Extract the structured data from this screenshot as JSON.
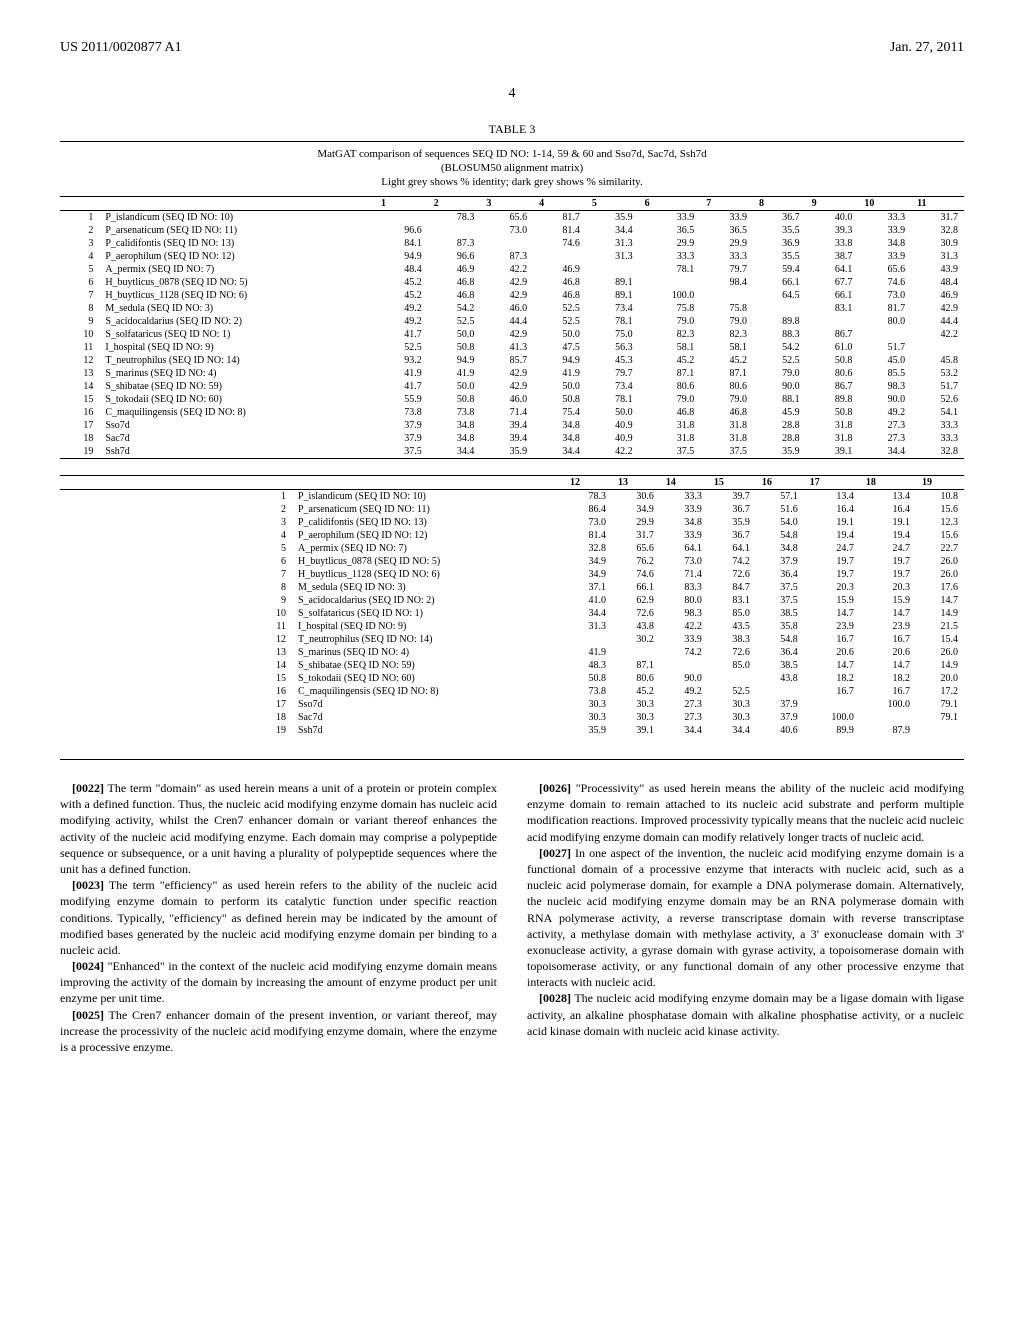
{
  "header": {
    "left": "US 2011/0020877 A1",
    "right": "Jan. 27, 2011"
  },
  "page_number": "4",
  "table": {
    "label": "TABLE 3",
    "caption1": "MatGAT comparison of sequences SEQ ID NO: 1-14, 59 & 60 and Sso7d, Sac7d, Ssh7d",
    "caption2": "(BLOSUM50 alignment matrix)",
    "caption3": "Light grey shows % identity; dark grey shows % similarity.",
    "rows1_headers": [
      "1",
      "2",
      "3",
      "4",
      "5",
      "6",
      "7",
      "8",
      "9",
      "10",
      "11"
    ],
    "rows2_headers": [
      "12",
      "13",
      "14",
      "15",
      "16",
      "17",
      "18",
      "19"
    ],
    "species": [
      {
        "n": "1",
        "name": "P_islandicum (SEQ ID NO: 10)"
      },
      {
        "n": "2",
        "name": "P_arsenaticum (SEQ ID NO: 11)"
      },
      {
        "n": "3",
        "name": "P_calidifontis (SEQ ID NO: 13)"
      },
      {
        "n": "4",
        "name": "P_aerophilum (SEQ ID NO: 12)"
      },
      {
        "n": "5",
        "name": "A_permix (SEQ ID NO: 7)"
      },
      {
        "n": "6",
        "name": "H_buytlicus_0878 (SEQ ID NO: 5)"
      },
      {
        "n": "7",
        "name": "H_buytlicus_1128 (SEQ ID NO: 6)"
      },
      {
        "n": "8",
        "name": "M_sedula (SEQ ID NO: 3)"
      },
      {
        "n": "9",
        "name": "S_acidocaldarius (SEQ ID NO: 2)"
      },
      {
        "n": "10",
        "name": "S_solfataricus (SEQ ID NO: 1)"
      },
      {
        "n": "11",
        "name": "I_hospital (SEQ ID NO: 9)"
      },
      {
        "n": "12",
        "name": "T_neutrophilus (SEQ ID NO: 14)"
      },
      {
        "n": "13",
        "name": "S_marinus (SEQ ID NO: 4)"
      },
      {
        "n": "14",
        "name": "S_shibatae (SEQ ID NO: 59)"
      },
      {
        "n": "15",
        "name": "S_tokodaii (SEQ ID NO: 60)"
      },
      {
        "n": "16",
        "name": "C_maquilingensis (SEQ ID NO: 8)"
      },
      {
        "n": "17",
        "name": "Sso7d"
      },
      {
        "n": "18",
        "name": "Sac7d"
      },
      {
        "n": "19",
        "name": "Ssh7d"
      }
    ],
    "matrix1": [
      [
        "",
        "78.3",
        "65.6",
        "81.7",
        "35.9",
        "33.9",
        "33.9",
        "36.7",
        "40.0",
        "33.3",
        "31.7"
      ],
      [
        "96.6",
        "",
        "73.0",
        "81.4",
        "34.4",
        "36.5",
        "36.5",
        "35.5",
        "39.3",
        "33.9",
        "32.8"
      ],
      [
        "84.1",
        "87.3",
        "",
        "74.6",
        "31.3",
        "29.9",
        "29.9",
        "36.9",
        "33.8",
        "34.8",
        "30.9"
      ],
      [
        "94.9",
        "96.6",
        "87.3",
        "",
        "31.3",
        "33.3",
        "33.3",
        "35.5",
        "38.7",
        "33.9",
        "31.3"
      ],
      [
        "48.4",
        "46.9",
        "42.2",
        "46.9",
        "",
        "78.1",
        "79.7",
        "59.4",
        "64.1",
        "65.6",
        "43.9"
      ],
      [
        "45.2",
        "46.8",
        "42.9",
        "46.8",
        "89.1",
        "",
        "98.4",
        "66.1",
        "67.7",
        "74.6",
        "48.4"
      ],
      [
        "45.2",
        "46.8",
        "42.9",
        "46.8",
        "89.1",
        "100.0",
        "",
        "64.5",
        "66.1",
        "73.0",
        "46.9"
      ],
      [
        "49.2",
        "54.2",
        "46.0",
        "52.5",
        "73.4",
        "75.8",
        "75.8",
        "",
        "83.1",
        "81.7",
        "42.9"
      ],
      [
        "49.2",
        "52.5",
        "44.4",
        "52.5",
        "78.1",
        "79.0",
        "79.0",
        "89.8",
        "",
        "80.0",
        "44.4"
      ],
      [
        "41.7",
        "50.0",
        "42.9",
        "50.0",
        "75.0",
        "82.3",
        "82.3",
        "88.3",
        "86.7",
        "",
        "42.2"
      ],
      [
        "52.5",
        "50.8",
        "41.3",
        "47.5",
        "56.3",
        "58.1",
        "58.1",
        "54.2",
        "61.0",
        "51.7",
        ""
      ],
      [
        "93.2",
        "94.9",
        "85.7",
        "94.9",
        "45.3",
        "45.2",
        "45.2",
        "52.5",
        "50.8",
        "45.0",
        "45.8"
      ],
      [
        "41.9",
        "41.9",
        "42.9",
        "41.9",
        "79.7",
        "87.1",
        "87.1",
        "79.0",
        "80.6",
        "85.5",
        "53.2"
      ],
      [
        "41.7",
        "50.0",
        "42.9",
        "50.0",
        "73.4",
        "80.6",
        "80.6",
        "90.0",
        "86.7",
        "98.3",
        "51.7"
      ],
      [
        "55.9",
        "50.8",
        "46.0",
        "50.8",
        "78.1",
        "79.0",
        "79.0",
        "88.1",
        "89.8",
        "90.0",
        "52.6"
      ],
      [
        "73.8",
        "73.8",
        "71.4",
        "75.4",
        "50.0",
        "46.8",
        "46.8",
        "45.9",
        "50.8",
        "49.2",
        "54.1"
      ],
      [
        "37.9",
        "34.8",
        "39.4",
        "34.8",
        "40.9",
        "31.8",
        "31.8",
        "28.8",
        "31.8",
        "27.3",
        "33.3"
      ],
      [
        "37.9",
        "34.8",
        "39.4",
        "34.8",
        "40.9",
        "31.8",
        "31.8",
        "28.8",
        "31.8",
        "27.3",
        "33.3"
      ],
      [
        "37.5",
        "34.4",
        "35.9",
        "34.4",
        "42.2",
        "37.5",
        "37.5",
        "35.9",
        "39.1",
        "34.4",
        "32.8"
      ]
    ],
    "matrix2": [
      [
        "78.3",
        "30.6",
        "33.3",
        "39.7",
        "57.1",
        "13.4",
        "13.4",
        "10.8"
      ],
      [
        "86.4",
        "34.9",
        "33.9",
        "36.7",
        "51.6",
        "16.4",
        "16.4",
        "15.6"
      ],
      [
        "73.0",
        "29.9",
        "34.8",
        "35.9",
        "54.0",
        "19.1",
        "19.1",
        "12.3"
      ],
      [
        "81.4",
        "31.7",
        "33.9",
        "36.7",
        "54.8",
        "19.4",
        "19.4",
        "15.6"
      ],
      [
        "32.8",
        "65.6",
        "64.1",
        "64.1",
        "34.8",
        "24.7",
        "24.7",
        "22.7"
      ],
      [
        "34.9",
        "76.2",
        "73.0",
        "74.2",
        "37.9",
        "19.7",
        "19.7",
        "26.0"
      ],
      [
        "34.9",
        "74.6",
        "71.4",
        "72.6",
        "36.4",
        "19.7",
        "19.7",
        "26.0"
      ],
      [
        "37.1",
        "66.1",
        "83.3",
        "84.7",
        "37.5",
        "20.3",
        "20.3",
        "17.6"
      ],
      [
        "41.0",
        "62.9",
        "80.0",
        "83.1",
        "37.5",
        "15.9",
        "15.9",
        "14.7"
      ],
      [
        "34.4",
        "72.6",
        "98.3",
        "85.0",
        "38.5",
        "14.7",
        "14.7",
        "14.9"
      ],
      [
        "31.3",
        "43.8",
        "42.2",
        "43.5",
        "35.8",
        "23.9",
        "23.9",
        "21.5"
      ],
      [
        "",
        "30.2",
        "33.9",
        "38.3",
        "54.8",
        "16.7",
        "16.7",
        "15.4"
      ],
      [
        "41.9",
        "",
        "74.2",
        "72.6",
        "36.4",
        "20.6",
        "20.6",
        "26.0"
      ],
      [
        "48.3",
        "87.1",
        "",
        "85.0",
        "38.5",
        "14.7",
        "14.7",
        "14.9"
      ],
      [
        "50.8",
        "80.6",
        "90.0",
        "",
        "43.8",
        "18.2",
        "18.2",
        "20.0"
      ],
      [
        "73.8",
        "45.2",
        "49.2",
        "52.5",
        "",
        "16.7",
        "16.7",
        "17.2"
      ],
      [
        "30.3",
        "30.3",
        "27.3",
        "30.3",
        "37.9",
        "",
        "100.0",
        "79.1"
      ],
      [
        "30.3",
        "30.3",
        "27.3",
        "30.3",
        "37.9",
        "100.0",
        "",
        "79.1"
      ],
      [
        "35.9",
        "39.1",
        "34.4",
        "34.4",
        "40.6",
        "89.9",
        "87.9",
        ""
      ]
    ]
  },
  "paragraphs": [
    {
      "label": "[0022]",
      "text": "The term \"domain\" as used herein means a unit of a protein or protein complex with a defined function. Thus, the nucleic acid modifying enzyme domain has nucleic acid modifying activity, whilst the Cren7 enhancer domain or variant thereof enhances the activity of the nucleic acid modifying enzyme. Each domain may comprise a polypeptide sequence or subsequence, or a unit having a plurality of polypeptide sequences where the unit has a defined function."
    },
    {
      "label": "[0023]",
      "text": "The term \"efficiency\" as used herein refers to the ability of the nucleic acid modifying enzyme domain to perform its catalytic function under specific reaction conditions. Typically, \"efficiency\" as defined herein may be indicated by the amount of modified bases generated by the nucleic acid modifying enzyme domain per binding to a nucleic acid."
    },
    {
      "label": "[0024]",
      "text": "\"Enhanced\" in the context of the nucleic acid modifying enzyme domain means improving the activity of the domain by increasing the amount of enzyme product per unit enzyme per unit time."
    },
    {
      "label": "[0025]",
      "text": "The Cren7 enhancer domain of the present invention, or variant thereof, may increase the processivity of the nucleic acid modifying enzyme domain, where the enzyme is a processive enzyme."
    },
    {
      "label": "[0026]",
      "text": "\"Processivity\" as used herein means the ability of the nucleic acid modifying enzyme domain to remain attached to its nucleic acid substrate and perform multiple modification reactions. Improved processivity typically means that the nucleic acid nucleic acid modifying enzyme domain can modify relatively longer tracts of nucleic acid."
    },
    {
      "label": "[0027]",
      "text": "In one aspect of the invention, the nucleic acid modifying enzyme domain is a functional domain of a processive enzyme that interacts with nucleic acid, such as a nucleic acid polymerase domain, for example a DNA polymerase domain. Alternatively, the nucleic acid modifying enzyme domain may be an RNA polymerase domain with RNA polymerase activity, a reverse transcriptase domain with reverse transcriptase activity, a methylase domain with methylase activity, a 3' exonuclease domain with 3' exonuclease activity, a gyrase domain with gyrase activity, a topoisomerase domain with topoisomerase activity, or any functional domain of any other processive enzyme that interacts with nucleic acid."
    },
    {
      "label": "[0028]",
      "text": "The nucleic acid modifying enzyme domain may be a ligase domain with ligase activity, an alkaline phosphatase domain with alkaline phosphatise activity, or a nucleic acid kinase domain with nucleic acid kinase activity."
    }
  ]
}
